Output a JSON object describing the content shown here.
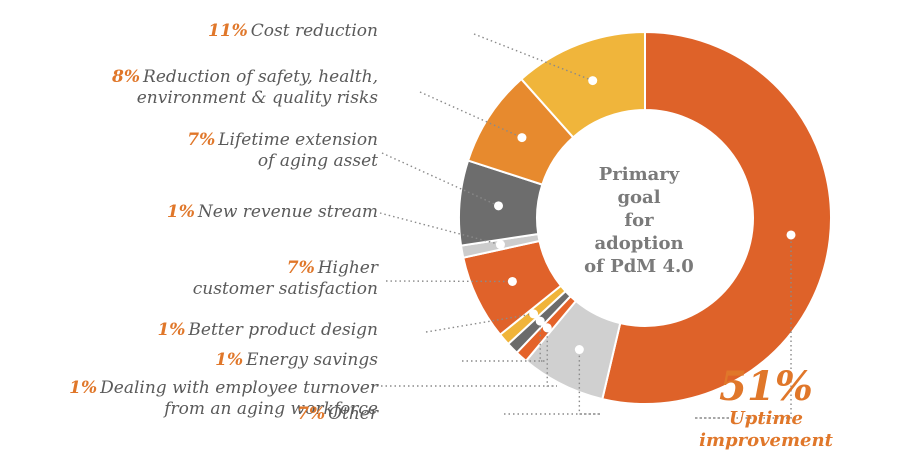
{
  "chart_data": {
    "type": "pie",
    "donut": true,
    "center_label": [
      "Primary goal",
      "for adoption",
      "of PdM 4.0"
    ],
    "slices": [
      {
        "percent_label": "51%",
        "value": 51,
        "label_lines": [
          "Uptime",
          "improvement"
        ],
        "color": "#de6229"
      },
      {
        "percent_label": "7%",
        "value": 7,
        "label_lines": [
          "Other"
        ],
        "color": "#d0d0d0"
      },
      {
        "percent_label": "1%",
        "value": 1,
        "label_lines": [
          "Dealing with employee turnover",
          "from an aging workforce"
        ],
        "color": "#e4632a"
      },
      {
        "percent_label": "1%",
        "value": 1,
        "label_lines": [
          "Energy savings"
        ],
        "color": "#6b6b6b"
      },
      {
        "percent_label": "1%",
        "value": 1,
        "label_lines": [
          "Better product design"
        ],
        "color": "#f0b43a"
      },
      {
        "percent_label": "7%",
        "value": 7,
        "label_lines": [
          "Higher",
          "customer satisfaction"
        ],
        "color": "#e0622a"
      },
      {
        "percent_label": "1%",
        "value": 1,
        "label_lines": [
          "New revenue stream"
        ],
        "color": "#cccccc"
      },
      {
        "percent_label": "7%",
        "value": 7,
        "label_lines": [
          "Lifetime extension",
          "of aging asset"
        ],
        "color": "#6d6d6d"
      },
      {
        "percent_label": "8%",
        "value": 8,
        "label_lines": [
          "Reduction of safety, health,",
          "environment & quality risks"
        ],
        "color": "#e78a2e"
      },
      {
        "percent_label": "11%",
        "value": 11,
        "label_lines": [
          "Cost reduction"
        ],
        "color": "#f0b53b"
      }
    ]
  },
  "colors": {
    "accent": "#e0772a",
    "label_text": "#5a5a5a",
    "center_text": "#7a7a7a",
    "leader_line": "#8a8a8a"
  }
}
